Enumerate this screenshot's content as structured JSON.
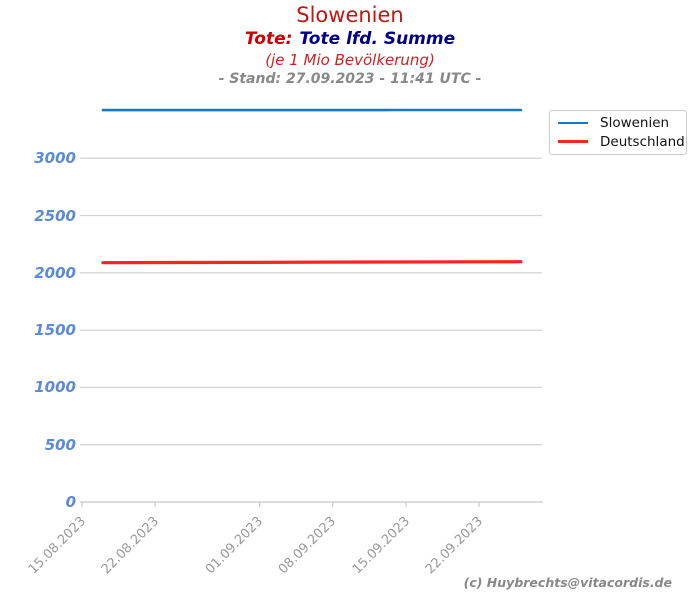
{
  "header": {
    "title": "Slowenien",
    "metric_label": "Tote:",
    "metric_name": "Tote lfd. Summe",
    "unit_note": "(je 1 Mio Bevölkerung)",
    "stand": "- Stand: 27.09.2023 - 11:41 UTC -"
  },
  "legend": {
    "entries": [
      {
        "label": "Slowenien",
        "color": "#1b78c0"
      },
      {
        "label": "Deutschland",
        "color": "#ff2222"
      }
    ]
  },
  "footer": {
    "credit": "(c) Huybrechts@vitacordis.de"
  },
  "colors": {
    "title_red": "#c41414",
    "metric_red": "#cc0000",
    "metric_navy": "#000088",
    "note_red": "#cc2222",
    "stand_gray": "#888888",
    "ytick_blue": "#5b8ad9",
    "xtick_gray": "#999999",
    "gridline": "#d4d4d4",
    "axis": "#c8c8c8",
    "slowenien_blue": "#1b78c0",
    "deutschland_red": "#ff2222"
  },
  "chart_data": {
    "type": "line",
    "title": "Slowenien",
    "subtitle": "Tote: Tote lfd. Summe (je 1 Mio Bevölkerung)",
    "stand": "27.09.2023 - 11:41 UTC",
    "grid": true,
    "legend_position": "upper right",
    "x_axis": {
      "label": "",
      "tick_labels": [
        "15.08.2023",
        "22.08.2023",
        "01.09.2023",
        "08.09.2023",
        "15.09.2023",
        "22.09.2023"
      ],
      "tick_days_from_start": [
        0,
        7,
        17,
        24,
        31,
        38
      ],
      "start_date": "15.08.2023",
      "end_date": "26.09.2023"
    },
    "y_axis": {
      "label": "",
      "ticks": [
        0,
        500,
        1000,
        1500,
        2000,
        2500,
        3000
      ],
      "range": [
        0,
        3500
      ]
    },
    "series": [
      {
        "name": "Slowenien",
        "color": "#1b78c0",
        "width": 2.6,
        "dates": [
          "17.08.2023",
          "24.08.2023",
          "31.08.2023",
          "07.09.2023",
          "14.09.2023",
          "21.09.2023",
          "26.09.2023"
        ],
        "x_days": [
          2,
          9,
          16,
          23,
          30,
          37,
          42
        ],
        "values": [
          3420,
          3420,
          3420,
          3420,
          3421,
          3421,
          3421
        ]
      },
      {
        "name": "Deutschland",
        "color": "#ff2222",
        "width": 3.2,
        "dates": [
          "17.08.2023",
          "24.08.2023",
          "31.08.2023",
          "07.09.2023",
          "14.09.2023",
          "21.09.2023",
          "26.09.2023"
        ],
        "x_days": [
          2,
          9,
          16,
          23,
          30,
          37,
          42
        ],
        "values": [
          2088,
          2090,
          2091,
          2093,
          2094,
          2096,
          2097
        ]
      }
    ]
  }
}
